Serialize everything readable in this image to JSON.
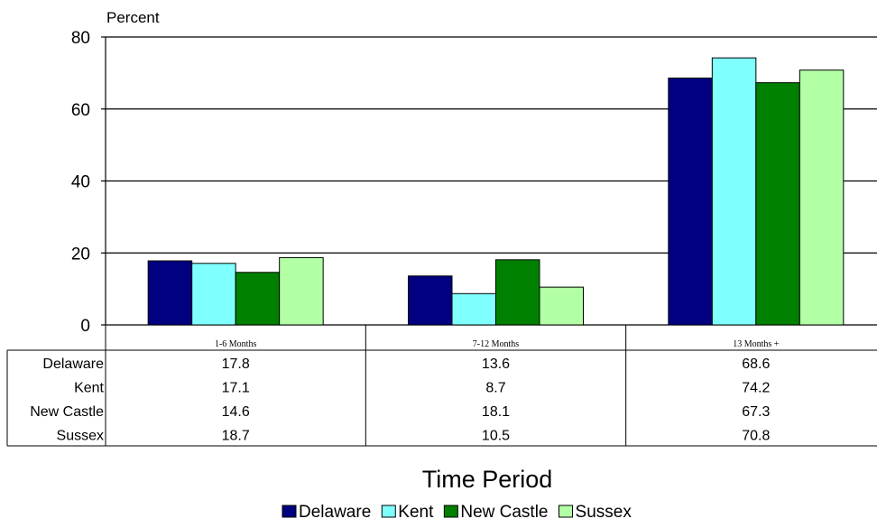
{
  "chart_data": {
    "type": "bar",
    "ylabel": "Percent",
    "xlabel": "Time Period",
    "ylim": [
      0,
      80
    ],
    "yticks": [
      0,
      20,
      40,
      60,
      80
    ],
    "grid": true,
    "legend_position": "bottom",
    "categories": [
      "1-6 Months",
      "7-12 Months",
      "13 Months +"
    ],
    "series": [
      {
        "name": "Delaware",
        "color": "#000080",
        "values": [
          17.8,
          13.6,
          68.6
        ],
        "labels": [
          "17.8",
          "13.6",
          "68.6"
        ]
      },
      {
        "name": "Kent",
        "color": "#80FFFF",
        "values": [
          17.1,
          8.7,
          74.2
        ],
        "labels": [
          "17.1",
          " 8.7",
          "74.2"
        ]
      },
      {
        "name": "New Castle",
        "color": "#008000",
        "values": [
          14.6,
          18.1,
          67.3
        ],
        "labels": [
          "14.6",
          "18.1",
          "67.3"
        ]
      },
      {
        "name": "Sussex",
        "color": "#B3FFA6",
        "values": [
          18.7,
          10.5,
          70.8
        ],
        "labels": [
          "18.7",
          "10.5",
          "70.8"
        ]
      }
    ]
  }
}
